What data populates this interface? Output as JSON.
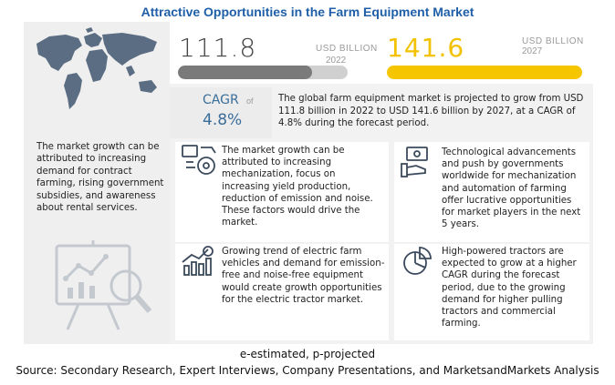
{
  "title": "Attractive Opportunities in the Farm Equipment Market",
  "market": {
    "value_2022": "111.8",
    "unit_2022": "USD BILLION",
    "year_2022": "2022",
    "value_2027": "141.6",
    "unit_2027": "USD BILLION",
    "year_2027": "2027",
    "bar_2022_fraction": 0.79,
    "bar_2027_fraction": 1.0
  },
  "cagr": {
    "label": "CAGR",
    "of": "of",
    "value": "4.8%",
    "description": "The global farm equipment market is projected to grow from USD 111.8 billion in 2022 to USD 141.6 billion by 2027, at a CAGR of 4.8% during the forecast period."
  },
  "left_panel": {
    "text": "The market growth can be attributed to increasing demand for contract farming, rising government subsidies, and awareness about rental services."
  },
  "cards": [
    {
      "icon": "mechanization-icon",
      "text": "The market growth can be attributed to increasing mechanization, focus on increasing yield production, reduction of emission and noise. These factors would drive the market."
    },
    {
      "icon": "money-hand-icon",
      "text": "Technological advancements and push by governments worldwide for mechanization and automation of farming offer lucrative opportunities for market players in the next 5 years."
    },
    {
      "icon": "growth-chart-icon",
      "text": "Growing trend of electric farm vehicles and demand for emission-free and noise-free equipment would create growth opportunities for the electric tractor market."
    },
    {
      "icon": "pie-chart-icon",
      "text": "High-powered tractors are expected to grow at a higher CAGR during the forecast period, due to the growing demand for higher pulling tractors and commercial farming."
    }
  ],
  "footer": {
    "note": "e-estimated, p-projected",
    "source": "Source: Secondary Research, Expert Interviews, Company Presentations, and MarketsandMarkets Analysis"
  },
  "colors": {
    "title": "#1f5fa8",
    "accent_yellow": "#f5c600",
    "bar_gray": "#7a7a7a",
    "cagr_blue": "#3a6e9a"
  }
}
